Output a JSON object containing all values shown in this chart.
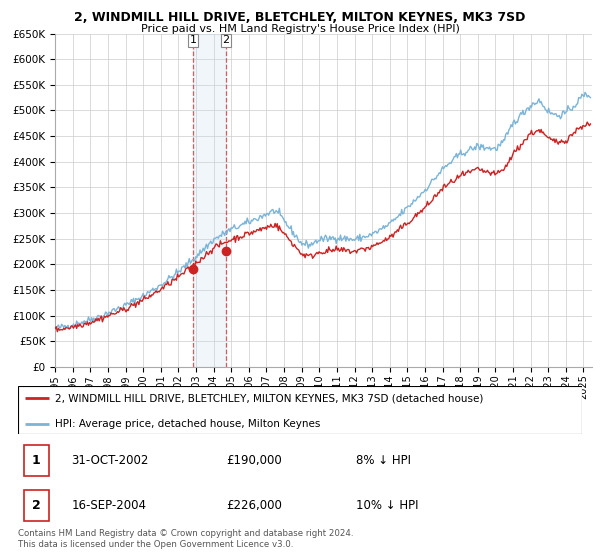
{
  "title1": "2, WINDMILL HILL DRIVE, BLETCHLEY, MILTON KEYNES, MK3 7SD",
  "title2": "Price paid vs. HM Land Registry's House Price Index (HPI)",
  "ytick_vals": [
    0,
    50000,
    100000,
    150000,
    200000,
    250000,
    300000,
    350000,
    400000,
    450000,
    500000,
    550000,
    600000,
    650000
  ],
  "hpi_color": "#7ab4d8",
  "price_color": "#cc2222",
  "marker_color": "#cc2222",
  "vline_color": "#cc4444",
  "shade_color": "#c8ddf0",
  "sale1": {
    "date_num": 2002.83,
    "price": 190000,
    "label": "1"
  },
  "sale2": {
    "date_num": 2004.71,
    "price": 226000,
    "label": "2"
  },
  "legend_line1": "2, WINDMILL HILL DRIVE, BLETCHLEY, MILTON KEYNES, MK3 7SD (detached house)",
  "legend_line2": "HPI: Average price, detached house, Milton Keynes",
  "table_row1": [
    "1",
    "31-OCT-2002",
    "£190,000",
    "8% ↓ HPI"
  ],
  "table_row2": [
    "2",
    "16-SEP-2004",
    "£226,000",
    "10% ↓ HPI"
  ],
  "footnote": "Contains HM Land Registry data © Crown copyright and database right 2024.\nThis data is licensed under the Open Government Licence v3.0.",
  "xmin": 1995.0,
  "xmax": 2025.5,
  "ymin": 0,
  "ymax": 650000,
  "hpi_keypoints_x": [
    1995,
    1996,
    1997,
    1998,
    1999,
    2000,
    2001,
    2002,
    2003,
    2004,
    2005,
    2006,
    2007,
    2007.5,
    2008,
    2009,
    2009.5,
    2010,
    2011,
    2012,
    2013,
    2014,
    2015,
    2016,
    2017,
    2018,
    2019,
    2020,
    2020.5,
    2021,
    2022,
    2022.5,
    2023,
    2023.5,
    2024,
    2024.5,
    2025
  ],
  "hpi_keypoints_y": [
    75000,
    82000,
    92000,
    105000,
    120000,
    138000,
    160000,
    185000,
    215000,
    248000,
    268000,
    282000,
    298000,
    305000,
    285000,
    240000,
    238000,
    248000,
    252000,
    248000,
    258000,
    278000,
    310000,
    345000,
    385000,
    415000,
    430000,
    425000,
    440000,
    475000,
    510000,
    520000,
    498000,
    490000,
    495000,
    510000,
    530000
  ],
  "prop_keypoints_x": [
    1995,
    1996,
    1997,
    1998,
    1999,
    2000,
    2001,
    2002,
    2003,
    2004,
    2005,
    2006,
    2007,
    2007.5,
    2008,
    2009,
    2009.5,
    2010,
    2011,
    2012,
    2013,
    2014,
    2015,
    2016,
    2017,
    2018,
    2019,
    2020,
    2020.5,
    2021,
    2022,
    2022.5,
    2023,
    2023.5,
    2024,
    2024.5,
    2025
  ],
  "prop_keypoints_y": [
    72000,
    78000,
    87000,
    99000,
    113000,
    130000,
    151000,
    175000,
    202000,
    232000,
    248000,
    260000,
    272000,
    278000,
    260000,
    220000,
    215000,
    224000,
    228000,
    225000,
    234000,
    252000,
    280000,
    310000,
    348000,
    372000,
    385000,
    375000,
    385000,
    415000,
    455000,
    462000,
    445000,
    438000,
    442000,
    458000,
    472000
  ],
  "noise_seed": 42,
  "hpi_noise": 3500,
  "prop_noise": 3000
}
